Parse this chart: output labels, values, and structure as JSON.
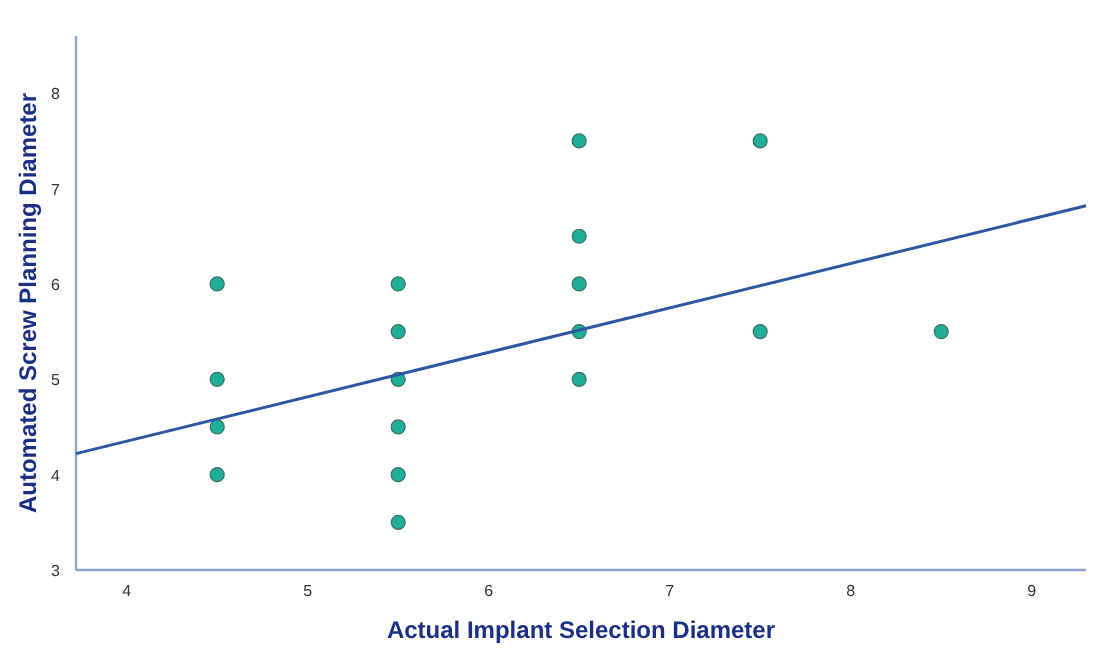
{
  "chart_data": {
    "type": "scatter",
    "xlabel": "Actual Implant Selection Diameter",
    "ylabel": "Automated Screw Planning Diameter",
    "xlim": [
      3.72,
      9.3
    ],
    "ylim": [
      3,
      8.6
    ],
    "xticks": [
      4,
      5,
      6,
      7,
      8,
      9
    ],
    "yticks": [
      3,
      4,
      5,
      6,
      7,
      8
    ],
    "grid": false,
    "series": [
      {
        "color": "#1fae96",
        "marker": "circle",
        "x": [
          4.5,
          4.5,
          4.5,
          4.5,
          5.5,
          5.5,
          5.5,
          5.5,
          5.5,
          5.5,
          6.5,
          6.5,
          6.5,
          6.5,
          6.5,
          7.5,
          7.5,
          8.5
        ],
        "values": [
          6,
          5,
          4.5,
          4,
          6,
          5.5,
          5,
          4.5,
          4,
          3.5,
          7.5,
          6.5,
          6,
          5.5,
          5,
          7.5,
          5.5,
          5.5
        ]
      },
      {
        "type": "line",
        "color": "#2d57a0",
        "x": [
          3.72,
          9.3
        ],
        "values": [
          4.22,
          6.82
        ]
      }
    ]
  }
}
